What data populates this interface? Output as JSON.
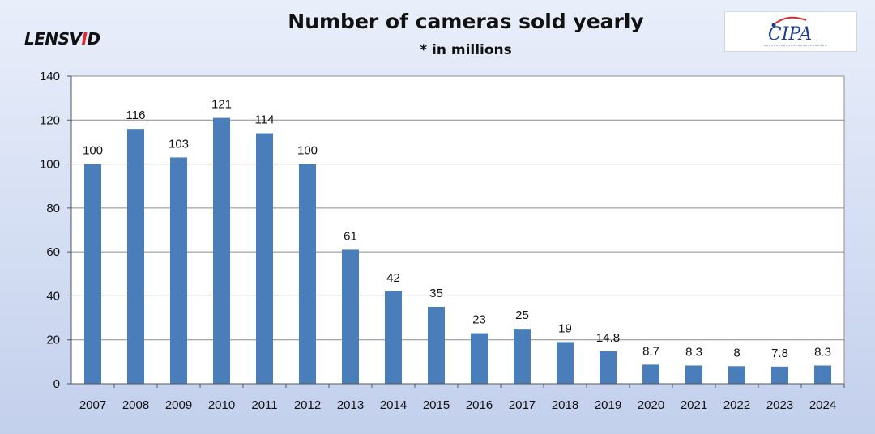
{
  "header": {
    "logo_left": "LENSVID",
    "title": "Number of cameras sold yearly",
    "subtitle": "* in millions",
    "logo_right": "CIPA"
  },
  "colors": {
    "bar": "#4a7ebb",
    "grid": "#8c8c8c",
    "axis": "#555555"
  },
  "chart_data": {
    "type": "bar",
    "title": "Number of cameras sold yearly",
    "subtitle": "* in millions",
    "categories": [
      "2007",
      "2008",
      "2009",
      "2010",
      "2011",
      "2012",
      "2013",
      "2014",
      "2015",
      "2016",
      "2017",
      "2018",
      "2019",
      "2020",
      "2021",
      "2022",
      "2023",
      "2024"
    ],
    "values": [
      100,
      116,
      103,
      121,
      114,
      100,
      61,
      42,
      35,
      23,
      25,
      19,
      14.8,
      8.7,
      8.3,
      8,
      7.8,
      8.3
    ],
    "data_labels": [
      "100",
      "116",
      "103",
      "121",
      "114",
      "100",
      "61",
      "42",
      "35",
      "23",
      "25",
      "19",
      "14.8",
      "8.7",
      "8.3",
      "8",
      "7.8",
      "8.3"
    ],
    "ylim": [
      0,
      140
    ],
    "yticks": [
      0,
      20,
      40,
      60,
      80,
      100,
      120,
      140
    ],
    "grid": true,
    "legend": "none"
  }
}
